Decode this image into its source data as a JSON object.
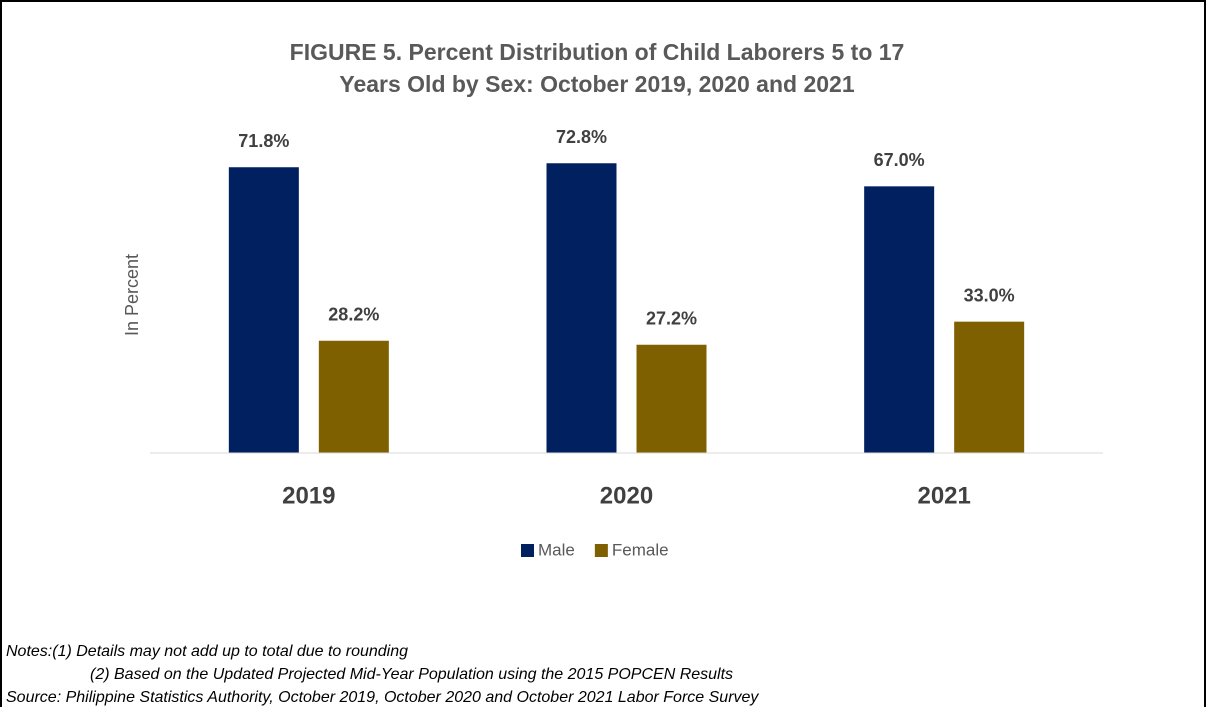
{
  "chart_data": {
    "type": "bar",
    "title": [
      "FIGURE 5. Percent Distribution of Child Laborers 5 to 17",
      "Years Old by Sex: October 2019, 2020 and 2021"
    ],
    "y_label": "In Percent",
    "categories": [
      "2019",
      "2020",
      "2021"
    ],
    "series": [
      {
        "name": "Male",
        "color": "#002060",
        "values": [
          71.8,
          72.8,
          67.0
        ],
        "value_labels": [
          "71.8%",
          "72.8%",
          "67.0%"
        ]
      },
      {
        "name": "Female",
        "color": "#7f6000",
        "values": [
          28.2,
          27.2,
          33.0
        ],
        "value_labels": [
          "28.2%",
          "27.2%",
          "33.0%"
        ]
      }
    ],
    "ylim": [
      0,
      80
    ],
    "legend": "bottom",
    "notes": [
      "Notes:(1) Details may not add up to total due to rounding",
      "(2) Based on the Updated Projected Mid-Year Population using the 2015 POPCEN Results",
      "Source: Philippine Statistics Authority, October 2019, October 2020 and October 2021 Labor Force Survey"
    ]
  }
}
